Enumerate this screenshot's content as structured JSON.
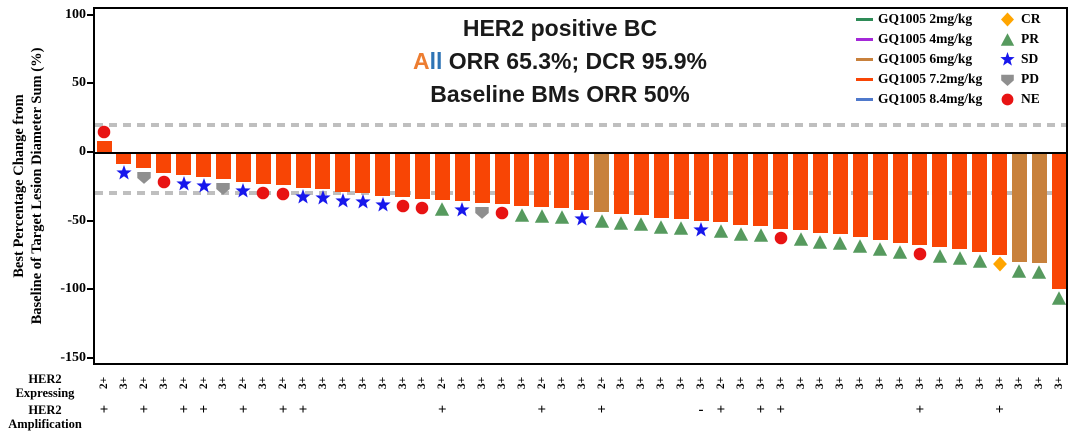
{
  "title": {
    "line1": "HER2 positive BC",
    "line2_word_a": "A",
    "line2_word_ll": "ll",
    "line2_rest": "ORR 65.3%; DCR 95.9%",
    "line3": "Baseline BMs ORR 50%",
    "accent_a": "#ED7D31",
    "accent_ll": "#2E74B5"
  },
  "y_axis": {
    "title_line1": "Best Percentage Change from",
    "title_line2": "Baseline of Target Lesion Diameter Sum (%)",
    "ticks": [
      100,
      50,
      0,
      -50,
      -100,
      -150
    ]
  },
  "x_axis": {
    "row1_title_line1": "HER2",
    "row1_title_line2": "Expressing",
    "row2_title_line1": "HER2",
    "row2_title_line2": "Amplification"
  },
  "legend": {
    "doses": [
      {
        "label": "GQ1005 2mg/kg",
        "color": "#2E8B57"
      },
      {
        "label": "GQ1005 4mg/kg",
        "color": "#A428D8"
      },
      {
        "label": "GQ1005 6mg/kg",
        "color": "#C8813C"
      },
      {
        "label": "GQ1005 7.2mg/kg",
        "color": "#F84505"
      },
      {
        "label": "GQ1005 8.4mg/kg",
        "color": "#4F79CB"
      }
    ],
    "responses": [
      {
        "label": "CR",
        "marker": "diamond",
        "color": "#FFA500"
      },
      {
        "label": "PR",
        "marker": "triangle",
        "color": "#569A5E"
      },
      {
        "label": "SD",
        "marker": "star",
        "color": "#1717EC"
      },
      {
        "label": "PD",
        "marker": "pentagon-down",
        "color": "#8F8F8F"
      },
      {
        "label": "NE",
        "marker": "circle",
        "color": "#E81313"
      }
    ]
  },
  "chart_data": {
    "type": "bar",
    "subtype": "waterfall",
    "title": "HER2 positive BC",
    "ylabel": "Best Percentage Change from Baseline of Target Lesion Diameter Sum (%)",
    "ylim": [
      -150,
      100
    ],
    "reference_lines": {
      "upper": 20,
      "lower": -30,
      "color": "#BFBFBF"
    },
    "bar_colors": {
      "GQ1005 7.2mg/kg": "#F84505",
      "GQ1005 6mg/kg": "#C8813C"
    },
    "bars": [
      {
        "value": 8,
        "dose": "GQ1005 7.2mg/kg",
        "response": "NE",
        "her2_expressing": "2+",
        "her2_amplification": "+"
      },
      {
        "value": -9,
        "dose": "GQ1005 7.2mg/kg",
        "response": "SD",
        "her2_expressing": "3+",
        "her2_amplification": ""
      },
      {
        "value": -12,
        "dose": "GQ1005 7.2mg/kg",
        "response": "PD",
        "her2_expressing": "2+",
        "her2_amplification": "+"
      },
      {
        "value": -15,
        "dose": "GQ1005 7.2mg/kg",
        "response": "NE",
        "her2_expressing": "3+",
        "her2_amplification": ""
      },
      {
        "value": -17,
        "dose": "GQ1005 7.2mg/kg",
        "response": "SD",
        "her2_expressing": "2+",
        "her2_amplification": "+"
      },
      {
        "value": -18,
        "dose": "GQ1005 7.2mg/kg",
        "response": "SD",
        "her2_expressing": "2+",
        "her2_amplification": "+"
      },
      {
        "value": -20,
        "dose": "GQ1005 7.2mg/kg",
        "response": "PD",
        "her2_expressing": "3+",
        "her2_amplification": ""
      },
      {
        "value": -22,
        "dose": "GQ1005 7.2mg/kg",
        "response": "SD",
        "her2_expressing": "2+",
        "her2_amplification": "+"
      },
      {
        "value": -23,
        "dose": "GQ1005 7.2mg/kg",
        "response": "NE",
        "her2_expressing": "3+",
        "her2_amplification": ""
      },
      {
        "value": -24,
        "dose": "GQ1005 7.2mg/kg",
        "response": "NE",
        "her2_expressing": "2+",
        "her2_amplification": "+"
      },
      {
        "value": -26,
        "dose": "GQ1005 7.2mg/kg",
        "response": "SD",
        "her2_expressing": "3+",
        "her2_amplification": "+"
      },
      {
        "value": -27,
        "dose": "GQ1005 7.2mg/kg",
        "response": "SD",
        "her2_expressing": "3+",
        "her2_amplification": ""
      },
      {
        "value": -29,
        "dose": "GQ1005 7.2mg/kg",
        "response": "SD",
        "her2_expressing": "3+",
        "her2_amplification": ""
      },
      {
        "value": -30,
        "dose": "GQ1005 7.2mg/kg",
        "response": "SD",
        "her2_expressing": "3+",
        "her2_amplification": ""
      },
      {
        "value": -32,
        "dose": "GQ1005 7.2mg/kg",
        "response": "SD",
        "her2_expressing": "3+",
        "her2_amplification": ""
      },
      {
        "value": -33,
        "dose": "GQ1005 7.2mg/kg",
        "response": "NE",
        "her2_expressing": "3+",
        "her2_amplification": ""
      },
      {
        "value": -34,
        "dose": "GQ1005 7.2mg/kg",
        "response": "NE",
        "her2_expressing": "3+",
        "her2_amplification": ""
      },
      {
        "value": -35,
        "dose": "GQ1005 7.2mg/kg",
        "response": "PR",
        "her2_expressing": "2+",
        "her2_amplification": "+"
      },
      {
        "value": -36,
        "dose": "GQ1005 7.2mg/kg",
        "response": "SD",
        "her2_expressing": "3+",
        "her2_amplification": ""
      },
      {
        "value": -37,
        "dose": "GQ1005 7.2mg/kg",
        "response": "PD",
        "her2_expressing": "3+",
        "her2_amplification": ""
      },
      {
        "value": -38,
        "dose": "GQ1005 7.2mg/kg",
        "response": "NE",
        "her2_expressing": "3+",
        "her2_amplification": ""
      },
      {
        "value": -39,
        "dose": "GQ1005 7.2mg/kg",
        "response": "PR",
        "her2_expressing": "3+",
        "her2_amplification": ""
      },
      {
        "value": -40,
        "dose": "GQ1005 7.2mg/kg",
        "response": "PR",
        "her2_expressing": "2+",
        "her2_amplification": "+"
      },
      {
        "value": -41,
        "dose": "GQ1005 7.2mg/kg",
        "response": "PR",
        "her2_expressing": "3+",
        "her2_amplification": ""
      },
      {
        "value": -42,
        "dose": "GQ1005 7.2mg/kg",
        "response": "SD",
        "her2_expressing": "3+",
        "her2_amplification": ""
      },
      {
        "value": -44,
        "dose": "GQ1005 6mg/kg",
        "response": "PR",
        "her2_expressing": "2+",
        "her2_amplification": "+"
      },
      {
        "value": -45,
        "dose": "GQ1005 7.2mg/kg",
        "response": "PR",
        "her2_expressing": "3+",
        "her2_amplification": ""
      },
      {
        "value": -46,
        "dose": "GQ1005 7.2mg/kg",
        "response": "PR",
        "her2_expressing": "3+",
        "her2_amplification": ""
      },
      {
        "value": -48,
        "dose": "GQ1005 7.2mg/kg",
        "response": "PR",
        "her2_expressing": "3+",
        "her2_amplification": ""
      },
      {
        "value": -49,
        "dose": "GQ1005 7.2mg/kg",
        "response": "PR",
        "her2_expressing": "3+",
        "her2_amplification": ""
      },
      {
        "value": -50,
        "dose": "GQ1005 7.2mg/kg",
        "response": "SD",
        "her2_expressing": "3+",
        "her2_amplification": "-"
      },
      {
        "value": -51,
        "dose": "GQ1005 7.2mg/kg",
        "response": "PR",
        "her2_expressing": "2+",
        "her2_amplification": "+"
      },
      {
        "value": -53,
        "dose": "GQ1005 7.2mg/kg",
        "response": "PR",
        "her2_expressing": "3+",
        "her2_amplification": ""
      },
      {
        "value": -54,
        "dose": "GQ1005 7.2mg/kg",
        "response": "PR",
        "her2_expressing": "3+",
        "her2_amplification": "+"
      },
      {
        "value": -56,
        "dose": "GQ1005 7.2mg/kg",
        "response": "NE",
        "her2_expressing": "3+",
        "her2_amplification": "+"
      },
      {
        "value": -57,
        "dose": "GQ1005 7.2mg/kg",
        "response": "PR",
        "her2_expressing": "3+",
        "her2_amplification": ""
      },
      {
        "value": -59,
        "dose": "GQ1005 7.2mg/kg",
        "response": "PR",
        "her2_expressing": "3+",
        "her2_amplification": ""
      },
      {
        "value": -60,
        "dose": "GQ1005 7.2mg/kg",
        "response": "PR",
        "her2_expressing": "3+",
        "her2_amplification": ""
      },
      {
        "value": -62,
        "dose": "GQ1005 7.2mg/kg",
        "response": "PR",
        "her2_expressing": "3+",
        "her2_amplification": ""
      },
      {
        "value": -64,
        "dose": "GQ1005 7.2mg/kg",
        "response": "PR",
        "her2_expressing": "3+",
        "her2_amplification": ""
      },
      {
        "value": -66,
        "dose": "GQ1005 7.2mg/kg",
        "response": "PR",
        "her2_expressing": "3+",
        "her2_amplification": ""
      },
      {
        "value": -68,
        "dose": "GQ1005 7.2mg/kg",
        "response": "NE",
        "her2_expressing": "3+",
        "her2_amplification": "+"
      },
      {
        "value": -69,
        "dose": "GQ1005 7.2mg/kg",
        "response": "PR",
        "her2_expressing": "3+",
        "her2_amplification": ""
      },
      {
        "value": -71,
        "dose": "GQ1005 7.2mg/kg",
        "response": "PR",
        "her2_expressing": "3+",
        "her2_amplification": ""
      },
      {
        "value": -73,
        "dose": "GQ1005 7.2mg/kg",
        "response": "PR",
        "her2_expressing": "3+",
        "her2_amplification": ""
      },
      {
        "value": -75,
        "dose": "GQ1005 7.2mg/kg",
        "response": "CR",
        "her2_expressing": "3+",
        "her2_amplification": "+"
      },
      {
        "value": -80,
        "dose": "GQ1005 6mg/kg",
        "response": "PR",
        "her2_expressing": "3+",
        "her2_amplification": ""
      },
      {
        "value": -81,
        "dose": "GQ1005 6mg/kg",
        "response": "PR",
        "her2_expressing": "3+",
        "her2_amplification": ""
      },
      {
        "value": -100,
        "dose": "GQ1005 7.2mg/kg",
        "response": "PR",
        "her2_expressing": "3+",
        "her2_amplification": ""
      }
    ]
  }
}
